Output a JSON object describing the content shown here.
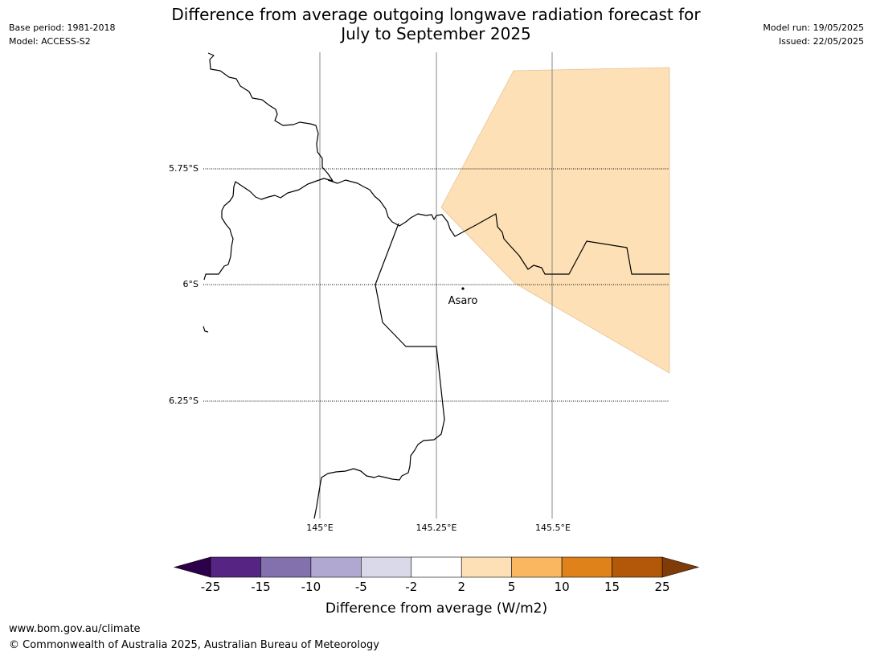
{
  "title_line1": "Difference from average outgoing longwave radiation forecast for",
  "title_line2": "July to September 2025",
  "base_period": "Base period: 1981-2018",
  "model": "Model: ACCESS-S2",
  "model_run": "Model run: 19/05/2025",
  "issued": "Issued: 22/05/2025",
  "map": {
    "lat_labels": [
      "5.75°S",
      "6°S",
      "6.25°S"
    ],
    "lon_labels": [
      "145°E",
      "145.25°E",
      "145.5°E"
    ],
    "place": "Asaro",
    "anomaly_color": "#fde0b5",
    "anomaly_range": "2 to 5"
  },
  "colorbar": {
    "label": "Difference from average (W/m2)",
    "ticks": [
      "-25",
      "-15",
      "-10",
      "-5",
      "-2",
      "2",
      "5",
      "10",
      "15",
      "25"
    ],
    "colors": [
      "#562583",
      "#8371ad",
      "#b1a8d2",
      "#d9d9ea",
      "#ffffff",
      "#fde0b5",
      "#fbb660",
      "#e0821a",
      "#b35808"
    ],
    "under_color": "#2d004b",
    "over_color": "#7f3b08"
  },
  "footer_url": "www.bom.gov.au/climate",
  "footer_copyright": "© Commonwealth of Australia 2025, Australian Bureau of Meteorology"
}
